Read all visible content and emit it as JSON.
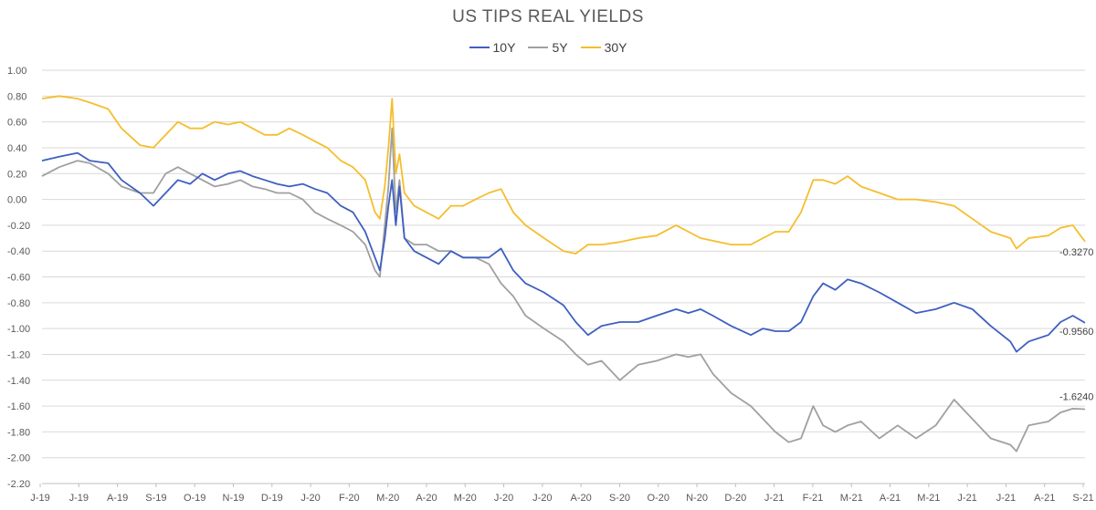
{
  "colors": {
    "y10": "#3F5FC0",
    "y5": "#A0A0A0",
    "y30": "#F5BE2E",
    "grid": "#D9D9D9",
    "axis": "#BFBFBF"
  },
  "chart_data": {
    "type": "line",
    "title": "US TIPS REAL YIELDS",
    "xlabel": "",
    "ylabel": "",
    "ylim": [
      -2.2,
      1.0
    ],
    "grid": true,
    "legend_position": "top-center",
    "y_ticks": [
      "1.00",
      "0.80",
      "0.60",
      "0.40",
      "0.20",
      "0.00",
      "-0.20",
      "-0.40",
      "-0.60",
      "-0.80",
      "-1.00",
      "-1.20",
      "-1.40",
      "-1.60",
      "-1.80",
      "-2.00",
      "-2.20"
    ],
    "x_ticks": [
      "J-19",
      "J-19",
      "A-19",
      "S-19",
      "O-19",
      "N-19",
      "D-19",
      "J-20",
      "F-20",
      "M-20",
      "A-20",
      "M-20",
      "J-20",
      "J-20",
      "A-20",
      "S-20",
      "O-20",
      "N-20",
      "D-20",
      "J-21",
      "F-21",
      "M-21",
      "A-21",
      "M-21",
      "J-21",
      "J-21",
      "A-21",
      "S-21"
    ],
    "x_range": [
      "2019-06-01",
      "2021-09-30"
    ],
    "series": [
      {
        "name": "10Y",
        "key": "y10",
        "end_label": "-0.9560",
        "points": [
          [
            "2019-06-01",
            0.3
          ],
          [
            "2019-06-15",
            0.33
          ],
          [
            "2019-06-30",
            0.36
          ],
          [
            "2019-07-10",
            0.3
          ],
          [
            "2019-07-25",
            0.28
          ],
          [
            "2019-08-05",
            0.15
          ],
          [
            "2019-08-20",
            0.05
          ],
          [
            "2019-08-31",
            -0.05
          ],
          [
            "2019-09-10",
            0.05
          ],
          [
            "2019-09-20",
            0.15
          ],
          [
            "2019-09-30",
            0.12
          ],
          [
            "2019-10-10",
            0.2
          ],
          [
            "2019-10-20",
            0.15
          ],
          [
            "2019-10-31",
            0.2
          ],
          [
            "2019-11-10",
            0.22
          ],
          [
            "2019-11-20",
            0.18
          ],
          [
            "2019-11-30",
            0.15
          ],
          [
            "2019-12-10",
            0.12
          ],
          [
            "2019-12-20",
            0.1
          ],
          [
            "2019-12-31",
            0.12
          ],
          [
            "2020-01-10",
            0.08
          ],
          [
            "2020-01-20",
            0.05
          ],
          [
            "2020-01-31",
            -0.05
          ],
          [
            "2020-02-10",
            -0.1
          ],
          [
            "2020-02-20",
            -0.25
          ],
          [
            "2020-02-28",
            -0.45
          ],
          [
            "2020-03-03",
            -0.55
          ],
          [
            "2020-03-07",
            -0.3
          ],
          [
            "2020-03-10",
            -0.05
          ],
          [
            "2020-03-13",
            0.15
          ],
          [
            "2020-03-16",
            -0.2
          ],
          [
            "2020-03-19",
            0.1
          ],
          [
            "2020-03-23",
            -0.3
          ],
          [
            "2020-03-31",
            -0.4
          ],
          [
            "2020-04-10",
            -0.45
          ],
          [
            "2020-04-20",
            -0.5
          ],
          [
            "2020-04-30",
            -0.4
          ],
          [
            "2020-05-10",
            -0.45
          ],
          [
            "2020-05-20",
            -0.45
          ],
          [
            "2020-05-31",
            -0.45
          ],
          [
            "2020-06-10",
            -0.38
          ],
          [
            "2020-06-20",
            -0.55
          ],
          [
            "2020-06-30",
            -0.65
          ],
          [
            "2020-07-15",
            -0.72
          ],
          [
            "2020-07-31",
            -0.82
          ],
          [
            "2020-08-10",
            -0.95
          ],
          [
            "2020-08-20",
            -1.05
          ],
          [
            "2020-08-31",
            -0.98
          ],
          [
            "2020-09-15",
            -0.95
          ],
          [
            "2020-09-30",
            -0.95
          ],
          [
            "2020-10-15",
            -0.9
          ],
          [
            "2020-10-31",
            -0.85
          ],
          [
            "2020-11-10",
            -0.88
          ],
          [
            "2020-11-20",
            -0.85
          ],
          [
            "2020-11-30",
            -0.9
          ],
          [
            "2020-12-15",
            -0.98
          ],
          [
            "2020-12-31",
            -1.05
          ],
          [
            "2021-01-10",
            -1.0
          ],
          [
            "2021-01-20",
            -1.02
          ],
          [
            "2021-01-31",
            -1.02
          ],
          [
            "2021-02-10",
            -0.95
          ],
          [
            "2021-02-20",
            -0.75
          ],
          [
            "2021-02-28",
            -0.65
          ],
          [
            "2021-03-10",
            -0.7
          ],
          [
            "2021-03-20",
            -0.62
          ],
          [
            "2021-03-31",
            -0.65
          ],
          [
            "2021-04-15",
            -0.72
          ],
          [
            "2021-04-30",
            -0.8
          ],
          [
            "2021-05-15",
            -0.88
          ],
          [
            "2021-05-31",
            -0.85
          ],
          [
            "2021-06-15",
            -0.8
          ],
          [
            "2021-06-30",
            -0.85
          ],
          [
            "2021-07-15",
            -0.98
          ],
          [
            "2021-07-31",
            -1.1
          ],
          [
            "2021-08-05",
            -1.18
          ],
          [
            "2021-08-15",
            -1.1
          ],
          [
            "2021-08-31",
            -1.05
          ],
          [
            "2021-09-10",
            -0.95
          ],
          [
            "2021-09-20",
            -0.9
          ],
          [
            "2021-09-30",
            -0.956
          ]
        ]
      },
      {
        "name": "5Y",
        "key": "y5",
        "end_label": "-1.6240",
        "points": [
          [
            "2019-06-01",
            0.18
          ],
          [
            "2019-06-15",
            0.25
          ],
          [
            "2019-06-30",
            0.3
          ],
          [
            "2019-07-10",
            0.28
          ],
          [
            "2019-07-25",
            0.2
          ],
          [
            "2019-08-05",
            0.1
          ],
          [
            "2019-08-20",
            0.05
          ],
          [
            "2019-08-31",
            0.05
          ],
          [
            "2019-09-10",
            0.2
          ],
          [
            "2019-09-20",
            0.25
          ],
          [
            "2019-09-30",
            0.2
          ],
          [
            "2019-10-10",
            0.15
          ],
          [
            "2019-10-20",
            0.1
          ],
          [
            "2019-10-31",
            0.12
          ],
          [
            "2019-11-10",
            0.15
          ],
          [
            "2019-11-20",
            0.1
          ],
          [
            "2019-11-30",
            0.08
          ],
          [
            "2019-12-10",
            0.05
          ],
          [
            "2019-12-20",
            0.05
          ],
          [
            "2019-12-31",
            0.0
          ],
          [
            "2020-01-10",
            -0.1
          ],
          [
            "2020-01-20",
            -0.15
          ],
          [
            "2020-01-31",
            -0.2
          ],
          [
            "2020-02-10",
            -0.25
          ],
          [
            "2020-02-20",
            -0.35
          ],
          [
            "2020-02-28",
            -0.55
          ],
          [
            "2020-03-03",
            -0.6
          ],
          [
            "2020-03-07",
            -0.2
          ],
          [
            "2020-03-10",
            0.1
          ],
          [
            "2020-03-13",
            0.55
          ],
          [
            "2020-03-16",
            -0.1
          ],
          [
            "2020-03-19",
            0.15
          ],
          [
            "2020-03-23",
            -0.3
          ],
          [
            "2020-03-31",
            -0.35
          ],
          [
            "2020-04-10",
            -0.35
          ],
          [
            "2020-04-20",
            -0.4
          ],
          [
            "2020-04-30",
            -0.4
          ],
          [
            "2020-05-10",
            -0.45
          ],
          [
            "2020-05-20",
            -0.45
          ],
          [
            "2020-05-31",
            -0.5
          ],
          [
            "2020-06-10",
            -0.65
          ],
          [
            "2020-06-20",
            -0.75
          ],
          [
            "2020-06-30",
            -0.9
          ],
          [
            "2020-07-15",
            -1.0
          ],
          [
            "2020-07-31",
            -1.1
          ],
          [
            "2020-08-10",
            -1.2
          ],
          [
            "2020-08-20",
            -1.28
          ],
          [
            "2020-08-31",
            -1.25
          ],
          [
            "2020-09-15",
            -1.4
          ],
          [
            "2020-09-30",
            -1.28
          ],
          [
            "2020-10-15",
            -1.25
          ],
          [
            "2020-10-31",
            -1.2
          ],
          [
            "2020-11-10",
            -1.22
          ],
          [
            "2020-11-20",
            -1.2
          ],
          [
            "2020-11-30",
            -1.35
          ],
          [
            "2020-12-15",
            -1.5
          ],
          [
            "2020-12-31",
            -1.6
          ],
          [
            "2021-01-10",
            -1.7
          ],
          [
            "2021-01-20",
            -1.8
          ],
          [
            "2021-01-31",
            -1.88
          ],
          [
            "2021-02-10",
            -1.85
          ],
          [
            "2021-02-20",
            -1.6
          ],
          [
            "2021-02-28",
            -1.75
          ],
          [
            "2021-03-10",
            -1.8
          ],
          [
            "2021-03-20",
            -1.75
          ],
          [
            "2021-03-31",
            -1.72
          ],
          [
            "2021-04-15",
            -1.85
          ],
          [
            "2021-04-30",
            -1.75
          ],
          [
            "2021-05-15",
            -1.85
          ],
          [
            "2021-05-31",
            -1.75
          ],
          [
            "2021-06-15",
            -1.55
          ],
          [
            "2021-06-30",
            -1.7
          ],
          [
            "2021-07-15",
            -1.85
          ],
          [
            "2021-07-31",
            -1.9
          ],
          [
            "2021-08-05",
            -1.95
          ],
          [
            "2021-08-15",
            -1.75
          ],
          [
            "2021-08-31",
            -1.72
          ],
          [
            "2021-09-10",
            -1.65
          ],
          [
            "2021-09-20",
            -1.62
          ],
          [
            "2021-09-30",
            -1.624
          ]
        ]
      },
      {
        "name": "30Y",
        "key": "y30",
        "end_label": "-0.3270",
        "points": [
          [
            "2019-06-01",
            0.78
          ],
          [
            "2019-06-15",
            0.8
          ],
          [
            "2019-06-30",
            0.78
          ],
          [
            "2019-07-10",
            0.75
          ],
          [
            "2019-07-25",
            0.7
          ],
          [
            "2019-08-05",
            0.55
          ],
          [
            "2019-08-20",
            0.42
          ],
          [
            "2019-08-31",
            0.4
          ],
          [
            "2019-09-10",
            0.5
          ],
          [
            "2019-09-20",
            0.6
          ],
          [
            "2019-09-30",
            0.55
          ],
          [
            "2019-10-10",
            0.55
          ],
          [
            "2019-10-20",
            0.6
          ],
          [
            "2019-10-31",
            0.58
          ],
          [
            "2019-11-10",
            0.6
          ],
          [
            "2019-11-20",
            0.55
          ],
          [
            "2019-11-30",
            0.5
          ],
          [
            "2019-12-10",
            0.5
          ],
          [
            "2019-12-20",
            0.55
          ],
          [
            "2019-12-31",
            0.5
          ],
          [
            "2020-01-10",
            0.45
          ],
          [
            "2020-01-20",
            0.4
          ],
          [
            "2020-01-31",
            0.3
          ],
          [
            "2020-02-10",
            0.25
          ],
          [
            "2020-02-20",
            0.15
          ],
          [
            "2020-02-28",
            -0.1
          ],
          [
            "2020-03-03",
            -0.15
          ],
          [
            "2020-03-07",
            0.1
          ],
          [
            "2020-03-10",
            0.4
          ],
          [
            "2020-03-13",
            0.78
          ],
          [
            "2020-03-16",
            0.2
          ],
          [
            "2020-03-19",
            0.35
          ],
          [
            "2020-03-23",
            0.05
          ],
          [
            "2020-03-31",
            -0.05
          ],
          [
            "2020-04-10",
            -0.1
          ],
          [
            "2020-04-20",
            -0.15
          ],
          [
            "2020-04-30",
            -0.05
          ],
          [
            "2020-05-10",
            -0.05
          ],
          [
            "2020-05-20",
            0.0
          ],
          [
            "2020-05-31",
            0.05
          ],
          [
            "2020-06-10",
            0.08
          ],
          [
            "2020-06-20",
            -0.1
          ],
          [
            "2020-06-30",
            -0.2
          ],
          [
            "2020-07-15",
            -0.3
          ],
          [
            "2020-07-31",
            -0.4
          ],
          [
            "2020-08-10",
            -0.42
          ],
          [
            "2020-08-20",
            -0.35
          ],
          [
            "2020-08-31",
            -0.35
          ],
          [
            "2020-09-15",
            -0.33
          ],
          [
            "2020-09-30",
            -0.3
          ],
          [
            "2020-10-15",
            -0.28
          ],
          [
            "2020-10-31",
            -0.2
          ],
          [
            "2020-11-10",
            -0.25
          ],
          [
            "2020-11-20",
            -0.3
          ],
          [
            "2020-11-30",
            -0.32
          ],
          [
            "2020-12-15",
            -0.35
          ],
          [
            "2020-12-31",
            -0.35
          ],
          [
            "2021-01-10",
            -0.3
          ],
          [
            "2021-01-20",
            -0.25
          ],
          [
            "2021-01-31",
            -0.25
          ],
          [
            "2021-02-10",
            -0.1
          ],
          [
            "2021-02-20",
            0.15
          ],
          [
            "2021-02-28",
            0.15
          ],
          [
            "2021-03-10",
            0.12
          ],
          [
            "2021-03-20",
            0.18
          ],
          [
            "2021-03-31",
            0.1
          ],
          [
            "2021-04-15",
            0.05
          ],
          [
            "2021-04-30",
            0.0
          ],
          [
            "2021-05-15",
            0.0
          ],
          [
            "2021-05-31",
            -0.02
          ],
          [
            "2021-06-15",
            -0.05
          ],
          [
            "2021-06-30",
            -0.15
          ],
          [
            "2021-07-15",
            -0.25
          ],
          [
            "2021-07-31",
            -0.3
          ],
          [
            "2021-08-05",
            -0.38
          ],
          [
            "2021-08-15",
            -0.3
          ],
          [
            "2021-08-31",
            -0.28
          ],
          [
            "2021-09-10",
            -0.22
          ],
          [
            "2021-09-20",
            -0.2
          ],
          [
            "2021-09-30",
            -0.327
          ]
        ]
      }
    ]
  }
}
